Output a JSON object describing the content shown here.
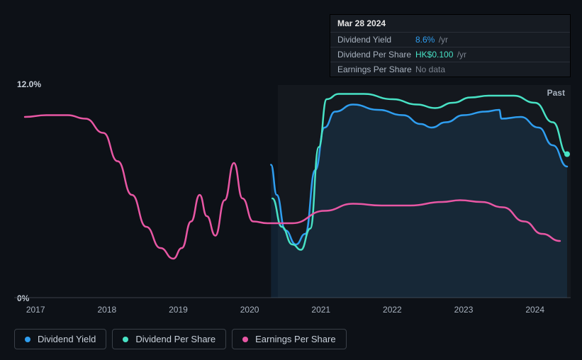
{
  "tooltip": {
    "date": "Mar 28 2024",
    "rows": [
      {
        "label": "Dividend Yield",
        "value": "8.6%",
        "unit": "/yr",
        "value_color": "#2f9ef0"
      },
      {
        "label": "Dividend Per Share",
        "value": "HK$0.100",
        "unit": "/yr",
        "value_color": "#48e2c5"
      },
      {
        "label": "Earnings Per Share",
        "value": "No data",
        "unit": "",
        "value_color": "#7a828e"
      }
    ]
  },
  "chart": {
    "type": "line",
    "background_color": "#0d1117",
    "future_overlay_color": "rgba(255,255,255,0.03)",
    "past_label": "Past",
    "ylim": [
      0,
      12
    ],
    "ytick_labels": {
      "top": "12.0%",
      "bottom": "0%"
    },
    "x_years": [
      2017,
      2018,
      2019,
      2020,
      2021,
      2022,
      2023,
      2024
    ],
    "x_domain": [
      2016.7,
      2024.5
    ],
    "x_split_year": 2020.4,
    "grid_color": "#3a4048",
    "series": [
      {
        "name": "Dividend Yield",
        "color": "#2f9ef0",
        "stroke_width": 2.5,
        "fill_opacity": 0.12,
        "area_fill": true,
        "points": [
          [
            2020.3,
            7.5
          ],
          [
            2020.38,
            5.8
          ],
          [
            2020.5,
            3.8
          ],
          [
            2020.65,
            3.0
          ],
          [
            2020.78,
            3.6
          ],
          [
            2020.92,
            7.2
          ],
          [
            2021.05,
            9.6
          ],
          [
            2021.2,
            10.5
          ],
          [
            2021.45,
            10.9
          ],
          [
            2021.8,
            10.6
          ],
          [
            2022.15,
            10.3
          ],
          [
            2022.4,
            9.8
          ],
          [
            2022.55,
            9.6
          ],
          [
            2022.75,
            9.9
          ],
          [
            2023.0,
            10.3
          ],
          [
            2023.3,
            10.5
          ],
          [
            2023.5,
            10.6
          ],
          [
            2023.53,
            10.1
          ],
          [
            2023.8,
            10.2
          ],
          [
            2024.05,
            9.6
          ],
          [
            2024.25,
            8.6
          ],
          [
            2024.45,
            7.4
          ]
        ]
      },
      {
        "name": "Dividend Per Share",
        "color": "#48e2c5",
        "stroke_width": 2.5,
        "fill_opacity": 0,
        "area_fill": false,
        "points": [
          [
            2020.32,
            5.6
          ],
          [
            2020.45,
            4.0
          ],
          [
            2020.6,
            3.0
          ],
          [
            2020.72,
            2.7
          ],
          [
            2020.85,
            3.9
          ],
          [
            2020.97,
            8.5
          ],
          [
            2021.08,
            11.2
          ],
          [
            2021.25,
            11.5
          ],
          [
            2021.6,
            11.5
          ],
          [
            2022.0,
            11.2
          ],
          [
            2022.35,
            10.9
          ],
          [
            2022.6,
            10.7
          ],
          [
            2022.85,
            11.0
          ],
          [
            2023.1,
            11.3
          ],
          [
            2023.35,
            11.4
          ],
          [
            2023.7,
            11.4
          ],
          [
            2024.0,
            11.0
          ],
          [
            2024.25,
            9.9
          ],
          [
            2024.45,
            8.1
          ]
        ]
      },
      {
        "name": "Earnings Per Share",
        "color": "#e857a4",
        "stroke_width": 2.5,
        "fill_opacity": 0,
        "area_fill": false,
        "points": [
          [
            2016.85,
            10.2
          ],
          [
            2017.15,
            10.3
          ],
          [
            2017.45,
            10.3
          ],
          [
            2017.7,
            10.1
          ],
          [
            2017.95,
            9.3
          ],
          [
            2018.15,
            7.7
          ],
          [
            2018.35,
            5.8
          ],
          [
            2018.55,
            4.0
          ],
          [
            2018.75,
            2.8
          ],
          [
            2018.93,
            2.2
          ],
          [
            2019.05,
            2.8
          ],
          [
            2019.18,
            4.3
          ],
          [
            2019.3,
            5.8
          ],
          [
            2019.4,
            4.6
          ],
          [
            2019.52,
            3.5
          ],
          [
            2019.65,
            5.5
          ],
          [
            2019.78,
            7.6
          ],
          [
            2019.9,
            5.6
          ],
          [
            2020.05,
            4.3
          ],
          [
            2020.25,
            4.2
          ],
          [
            2020.6,
            4.2
          ],
          [
            2021.05,
            4.9
          ],
          [
            2021.45,
            5.3
          ],
          [
            2021.85,
            5.2
          ],
          [
            2022.25,
            5.2
          ],
          [
            2022.7,
            5.4
          ],
          [
            2022.95,
            5.5
          ],
          [
            2023.25,
            5.4
          ],
          [
            2023.55,
            5.1
          ],
          [
            2023.85,
            4.3
          ],
          [
            2024.1,
            3.6
          ],
          [
            2024.35,
            3.2
          ]
        ]
      }
    ]
  },
  "legend": {
    "items": [
      {
        "label": "Dividend Yield",
        "color": "#2f9ef0"
      },
      {
        "label": "Dividend Per Share",
        "color": "#48e2c5"
      },
      {
        "label": "Earnings Per Share",
        "color": "#e857a4"
      }
    ]
  }
}
